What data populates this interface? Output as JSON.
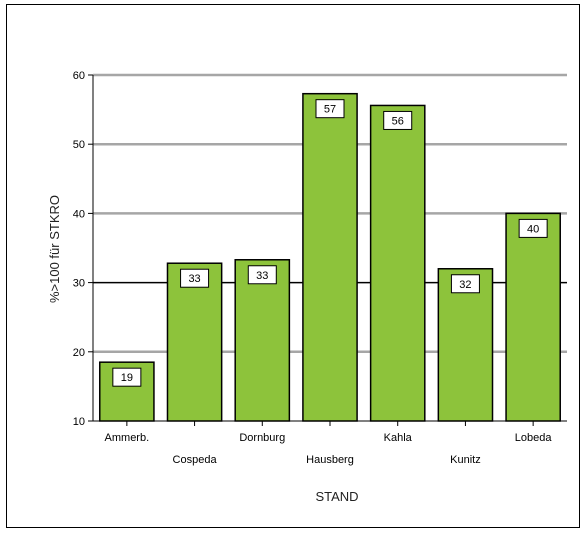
{
  "chart_data": {
    "type": "bar",
    "title": "",
    "xlabel": "STAND",
    "ylabel": "%>100 für STKRO",
    "categories": [
      "Ammerb.",
      "Cospeda",
      "Dornburg",
      "Hausberg",
      "Kahla",
      "Kunitz",
      "Lobeda"
    ],
    "values": [
      18.5,
      32.8,
      33.3,
      57.3,
      55.6,
      32.0,
      40.0
    ],
    "data_labels": [
      "19",
      "33",
      "33",
      "57",
      "56",
      "32",
      "40"
    ],
    "ylim": [
      10,
      60
    ],
    "yticks": [
      "10",
      "20",
      "30",
      "40",
      "50",
      "60"
    ],
    "gridlines": [
      20,
      30,
      40,
      50,
      60
    ],
    "highlight_gridline": 30,
    "grid": true,
    "legend": "none",
    "colors": {
      "bar_fill": "#8dc33b",
      "bar_stroke": "#000000",
      "grid": "#a6a6a6",
      "highlight_grid": "#000000"
    }
  }
}
